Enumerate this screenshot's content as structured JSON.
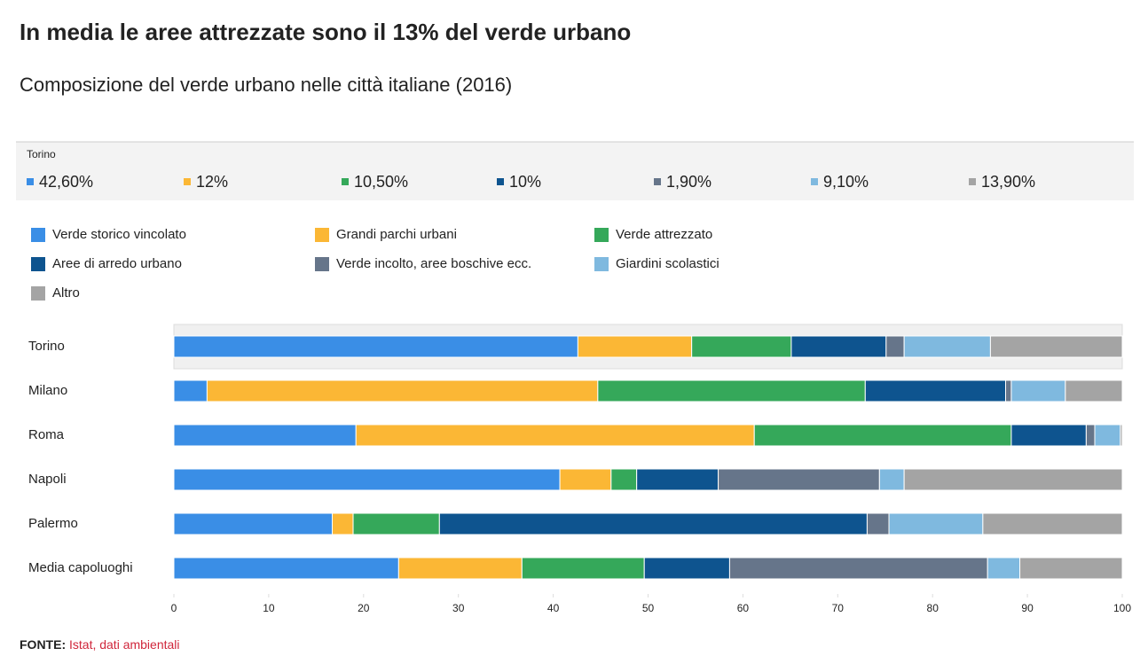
{
  "chart_data": {
    "type": "stacked_barh",
    "title": "In media le aree attrezzate sono il 13% del verde urbano",
    "subtitle": "Composizione del verde urbano nelle città italiane (2016)",
    "categories": [
      "Torino",
      "Milano",
      "Roma",
      "Napoli",
      "Palermo",
      "Media capoluoghi"
    ],
    "series": [
      {
        "name": "Verde storico vincolato",
        "color": "#3a8ee6",
        "values": [
          42.6,
          3.5,
          19.2,
          40.7,
          16.7,
          23.7
        ]
      },
      {
        "name": "Grandi parchi urbani",
        "color": "#fbb735",
        "values": [
          12,
          41.2,
          42.0,
          5.4,
          2.2,
          13.0
        ]
      },
      {
        "name": "Verde attrezzato",
        "color": "#35a85a",
        "values": [
          10.5,
          28.2,
          27.1,
          2.7,
          9.1,
          12.9
        ]
      },
      {
        "name": "Aree di arredo urbano",
        "color": "#0e548f",
        "values": [
          10,
          14.8,
          7.9,
          8.6,
          45.1,
          9.0
        ]
      },
      {
        "name": "Verde incolto, aree boschive ecc.",
        "color": "#66758a",
        "values": [
          1.9,
          0.6,
          0.9,
          17.0,
          2.3,
          27.2
        ]
      },
      {
        "name": "Giardini scolastici",
        "color": "#7fb9df",
        "values": [
          9.1,
          5.7,
          2.7,
          2.6,
          9.9,
          3.4
        ]
      },
      {
        "name": "Altro",
        "color": "#a4a4a4",
        "values": [
          13.9,
          6.0,
          0.2,
          23.0,
          14.7,
          10.8
        ]
      }
    ],
    "tooltip": {
      "title": "Torino",
      "value_labels": [
        "42,60%",
        "12%",
        "10,50%",
        "10%",
        "1,90%",
        "9,10%",
        "13,90%"
      ]
    },
    "xlim": [
      0,
      100
    ],
    "xticks": [
      0,
      10,
      20,
      30,
      40,
      50,
      60,
      70,
      80,
      90,
      100
    ],
    "source_label": "FONTE:",
    "source": "Istat, dati ambientali"
  }
}
